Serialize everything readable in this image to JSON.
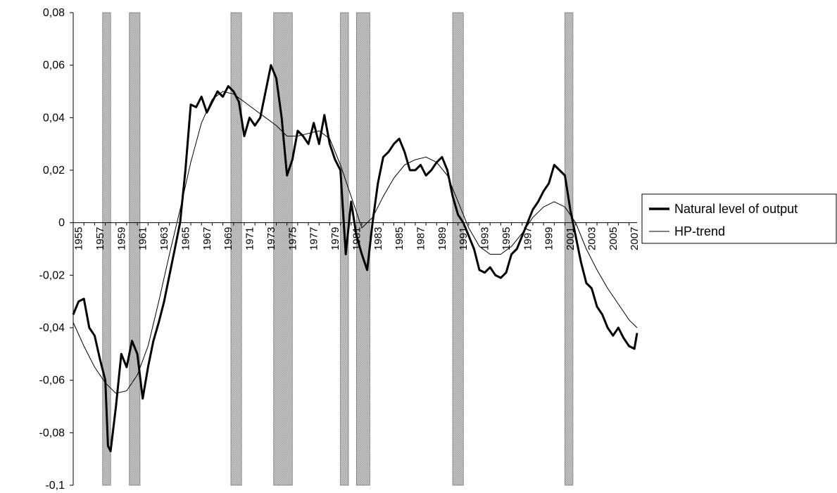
{
  "chart_data": {
    "type": "line",
    "title": "",
    "xlabel": "",
    "ylabel": "",
    "xlim": [
      1955,
      2007.75
    ],
    "ylim": [
      -0.1,
      0.08
    ],
    "y_ticks": [
      0.08,
      0.06,
      0.04,
      0.02,
      0,
      -0.02,
      -0.04,
      -0.06,
      -0.08,
      -0.1
    ],
    "y_tick_labels": [
      "0,08",
      "0,06",
      "0,04",
      "0,02",
      "0",
      "-0,02",
      "-0,04",
      "-0,06",
      "-0,08",
      "-0,1"
    ],
    "x_tick_labels": [
      "1955",
      "1957",
      "1959",
      "1961",
      "1963",
      "1965",
      "1967",
      "1969",
      "1971",
      "1973",
      "1975",
      "1977",
      "1979",
      "1981",
      "1983",
      "1985",
      "1987",
      "1989",
      "1991",
      "1993",
      "1995",
      "1997",
      "1999",
      "2001",
      "2003",
      "2005",
      "2007"
    ],
    "grid": false,
    "legend_position": "right",
    "recessions": [
      [
        1957.75,
        1958.5
      ],
      [
        1960.25,
        1961.25
      ],
      [
        1969.75,
        1970.75
      ],
      [
        1973.75,
        1975.5
      ],
      [
        1980.0,
        1980.75
      ],
      [
        1981.5,
        1982.75
      ],
      [
        1990.5,
        1991.5
      ],
      [
        2001.0,
        2001.75
      ]
    ],
    "series": [
      {
        "name": "Natural level of output",
        "color": "#000000",
        "style": "thick",
        "x": [
          1955.0,
          1955.5,
          1956.0,
          1956.5,
          1957.0,
          1957.5,
          1958.0,
          1958.25,
          1958.5,
          1959.0,
          1959.5,
          1960.0,
          1960.5,
          1961.0,
          1961.5,
          1962.0,
          1962.5,
          1963.0,
          1963.5,
          1964.0,
          1964.5,
          1965.0,
          1965.5,
          1966.0,
          1966.5,
          1967.0,
          1967.5,
          1968.0,
          1968.5,
          1969.0,
          1969.5,
          1970.0,
          1970.5,
          1971.0,
          1971.5,
          1972.0,
          1972.5,
          1973.0,
          1973.5,
          1974.0,
          1974.5,
          1975.0,
          1975.5,
          1976.0,
          1976.5,
          1977.0,
          1977.5,
          1978.0,
          1978.5,
          1979.0,
          1979.5,
          1980.0,
          1980.5,
          1981.0,
          1981.5,
          1982.0,
          1982.5,
          1983.0,
          1983.5,
          1984.0,
          1984.5,
          1985.0,
          1985.5,
          1986.0,
          1986.5,
          1987.0,
          1987.5,
          1988.0,
          1988.5,
          1989.0,
          1989.5,
          1990.0,
          1990.5,
          1991.0,
          1991.5,
          1992.0,
          1992.5,
          1993.0,
          1993.5,
          1994.0,
          1994.5,
          1995.0,
          1995.5,
          1996.0,
          1996.5,
          1997.0,
          1997.5,
          1998.0,
          1998.5,
          1999.0,
          1999.5,
          2000.0,
          2000.5,
          2001.0,
          2001.5,
          2002.0,
          2002.5,
          2003.0,
          2003.5,
          2004.0,
          2004.5,
          2005.0,
          2005.5,
          2006.0,
          2006.5,
          2007.0,
          2007.5,
          2007.75
        ],
        "y": [
          -0.035,
          -0.03,
          -0.029,
          -0.04,
          -0.043,
          -0.052,
          -0.06,
          -0.085,
          -0.087,
          -0.07,
          -0.05,
          -0.055,
          -0.045,
          -0.05,
          -0.067,
          -0.055,
          -0.045,
          -0.038,
          -0.03,
          -0.02,
          -0.01,
          0.0,
          0.02,
          0.045,
          0.044,
          0.048,
          0.042,
          0.046,
          0.05,
          0.048,
          0.052,
          0.05,
          0.046,
          0.033,
          0.04,
          0.037,
          0.04,
          0.05,
          0.06,
          0.055,
          0.04,
          0.018,
          0.024,
          0.035,
          0.033,
          0.03,
          0.038,
          0.03,
          0.041,
          0.03,
          0.024,
          0.02,
          -0.012,
          0.008,
          -0.005,
          -0.012,
          -0.018,
          0.0,
          0.015,
          0.025,
          0.027,
          0.03,
          0.032,
          0.027,
          0.02,
          0.02,
          0.022,
          0.018,
          0.02,
          0.023,
          0.025,
          0.02,
          0.01,
          0.003,
          0.0,
          -0.005,
          -0.01,
          -0.018,
          -0.019,
          -0.017,
          -0.02,
          -0.021,
          -0.019,
          -0.012,
          -0.01,
          -0.005,
          0.0,
          0.005,
          0.008,
          0.012,
          0.015,
          0.022,
          0.02,
          0.018,
          0.005,
          -0.005,
          -0.015,
          -0.023,
          -0.025,
          -0.032,
          -0.035,
          -0.04,
          -0.043,
          -0.04,
          -0.044,
          -0.047,
          -0.048,
          -0.042
        ]
      },
      {
        "name": "HP-trend",
        "color": "#000000",
        "style": "thin",
        "x": [
          1955.0,
          1956.0,
          1957.0,
          1958.0,
          1959.0,
          1960.0,
          1961.0,
          1962.0,
          1963.0,
          1964.0,
          1965.0,
          1966.0,
          1967.0,
          1968.0,
          1969.0,
          1970.0,
          1971.0,
          1972.0,
          1973.0,
          1974.0,
          1975.0,
          1976.0,
          1977.0,
          1978.0,
          1979.0,
          1980.0,
          1981.0,
          1982.0,
          1983.0,
          1984.0,
          1985.0,
          1986.0,
          1987.0,
          1988.0,
          1989.0,
          1990.0,
          1991.0,
          1992.0,
          1993.0,
          1994.0,
          1995.0,
          1996.0,
          1997.0,
          1998.0,
          1999.0,
          2000.0,
          2001.0,
          2002.0,
          2003.0,
          2004.0,
          2005.0,
          2006.0,
          2007.0,
          2007.75
        ],
        "y": [
          -0.038,
          -0.047,
          -0.055,
          -0.061,
          -0.065,
          -0.064,
          -0.058,
          -0.047,
          -0.03,
          -0.012,
          0.005,
          0.023,
          0.038,
          0.047,
          0.05,
          0.049,
          0.046,
          0.043,
          0.04,
          0.037,
          0.033,
          0.033,
          0.034,
          0.035,
          0.032,
          0.022,
          0.01,
          -0.002,
          0.002,
          0.01,
          0.017,
          0.022,
          0.024,
          0.025,
          0.023,
          0.018,
          0.008,
          -0.002,
          -0.009,
          -0.012,
          -0.012,
          -0.009,
          -0.004,
          0.002,
          0.006,
          0.008,
          0.006,
          0.0,
          -0.01,
          -0.018,
          -0.025,
          -0.031,
          -0.037,
          -0.04
        ]
      }
    ]
  }
}
